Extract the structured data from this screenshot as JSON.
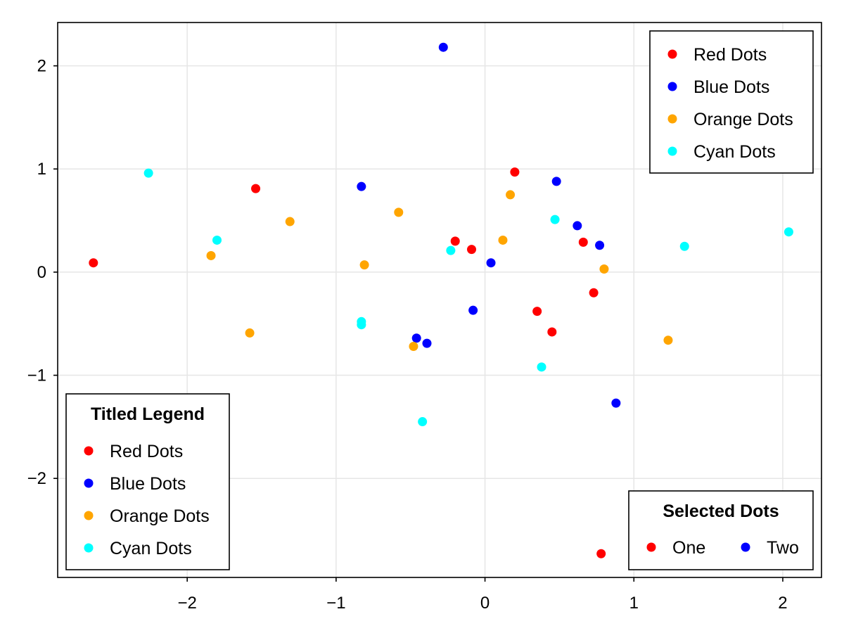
{
  "chart_data": {
    "type": "scatter",
    "title": "",
    "xlabel": "",
    "ylabel": "",
    "xlim": [
      -2.87,
      2.26
    ],
    "ylim": [
      -2.96,
      2.42
    ],
    "grid": true,
    "x_ticks": [
      -2,
      -1,
      0,
      1,
      2
    ],
    "y_ticks": [
      -2,
      -1,
      0,
      1,
      2
    ],
    "x_tick_labels": [
      "−2",
      "−1",
      "0",
      "1",
      "2"
    ],
    "y_tick_labels": [
      "−2",
      "−1",
      "0",
      "1",
      "2"
    ],
    "series": [
      {
        "name": "Red Dots",
        "color": "#ff0000",
        "points": [
          [
            -2.63,
            0.09
          ],
          [
            -1.54,
            0.81
          ],
          [
            -0.2,
            0.3
          ],
          [
            -0.09,
            0.22
          ],
          [
            0.2,
            0.97
          ],
          [
            0.35,
            -0.38
          ],
          [
            0.45,
            -0.58
          ],
          [
            0.66,
            0.29
          ],
          [
            0.73,
            -0.2
          ],
          [
            0.78,
            -2.73
          ]
        ]
      },
      {
        "name": "Blue Dots",
        "color": "#0000ff",
        "points": [
          [
            -0.28,
            2.18
          ],
          [
            -0.83,
            0.83
          ],
          [
            0.48,
            0.88
          ],
          [
            0.62,
            0.45
          ],
          [
            0.77,
            0.26
          ],
          [
            0.04,
            0.09
          ],
          [
            -0.08,
            -0.37
          ],
          [
            -0.46,
            -0.64
          ],
          [
            -0.39,
            -0.69
          ],
          [
            0.88,
            -1.27
          ]
        ]
      },
      {
        "name": "Orange Dots",
        "color": "#ffa500",
        "points": [
          [
            -1.84,
            0.16
          ],
          [
            -1.31,
            0.49
          ],
          [
            -0.58,
            0.58
          ],
          [
            -0.81,
            0.07
          ],
          [
            -1.58,
            -0.59
          ],
          [
            -0.48,
            -0.72
          ],
          [
            0.17,
            0.75
          ],
          [
            0.12,
            0.31
          ],
          [
            0.8,
            0.03
          ],
          [
            1.23,
            -0.66
          ]
        ]
      },
      {
        "name": "Cyan Dots",
        "color": "#00ffff",
        "points": [
          [
            -2.26,
            0.96
          ],
          [
            -1.8,
            0.31
          ],
          [
            -0.83,
            -0.48
          ],
          [
            -0.83,
            -0.51
          ],
          [
            -0.42,
            -1.45
          ],
          [
            -0.23,
            0.21
          ],
          [
            0.47,
            0.51
          ],
          [
            0.38,
            -0.92
          ],
          [
            1.34,
            0.25
          ],
          [
            2.04,
            0.39
          ]
        ]
      }
    ],
    "legends": [
      {
        "placement": "top-right",
        "title": "",
        "entries": [
          {
            "label": "Red Dots",
            "color": "#ff0000"
          },
          {
            "label": "Blue Dots",
            "color": "#0000ff"
          },
          {
            "label": "Orange Dots",
            "color": "#ffa500"
          },
          {
            "label": "Cyan Dots",
            "color": "#00ffff"
          }
        ]
      },
      {
        "placement": "bottom-left",
        "title": "Titled Legend",
        "entries": [
          {
            "label": "Red Dots",
            "color": "#ff0000"
          },
          {
            "label": "Blue Dots",
            "color": "#0000ff"
          },
          {
            "label": "Orange Dots",
            "color": "#ffa500"
          },
          {
            "label": "Cyan Dots",
            "color": "#00ffff"
          }
        ]
      },
      {
        "placement": "bottom-right",
        "orientation": "horizontal",
        "title": "Selected Dots",
        "entries": [
          {
            "label": "One",
            "color": "#ff0000"
          },
          {
            "label": "Two",
            "color": "#0000ff"
          }
        ]
      }
    ]
  }
}
